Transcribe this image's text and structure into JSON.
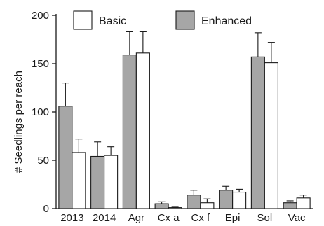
{
  "chart_data": {
    "type": "bar",
    "ylabel": "# Seedlings per reach",
    "xlabel": "",
    "ylim": [
      0,
      200
    ],
    "yticks": [
      0,
      50,
      100,
      150,
      200
    ],
    "categories": [
      "2013",
      "2014",
      "Agr",
      "Cx a",
      "Cx f",
      "Epi",
      "Sol",
      "Vac"
    ],
    "legend_position": "top",
    "series": [
      {
        "name": "Enhanced",
        "color": "#a6a6a6",
        "values": [
          106,
          54,
          159,
          5,
          14,
          19,
          157,
          6
        ],
        "errors": [
          24,
          15,
          24,
          2,
          5,
          4,
          25,
          2
        ]
      },
      {
        "name": "Basic",
        "color": "#ffffff",
        "values": [
          58,
          55,
          161,
          1,
          6,
          17,
          151,
          11
        ],
        "errors": [
          14,
          9,
          22,
          0.5,
          4,
          3,
          21,
          3
        ]
      }
    ],
    "legend_order": [
      "Basic",
      "Enhanced"
    ]
  }
}
